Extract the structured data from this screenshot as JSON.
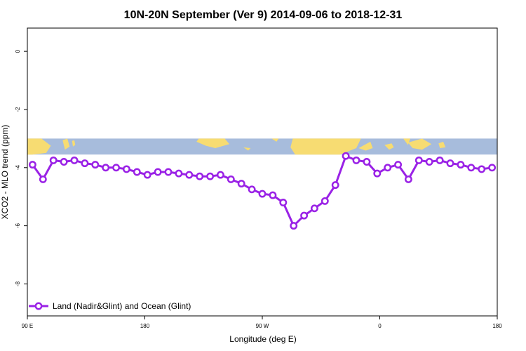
{
  "chart_data": {
    "type": "line",
    "title": "10N-20N September (Ver 9)   2014-09-06 to 2018-12-31",
    "xlabel": "Longitude (deg E)",
    "ylabel": "XCO2 - MLO trend (ppm)",
    "xlim": [
      90,
      450
    ],
    "ylim": [
      -9.1,
      0.8
    ],
    "x_ticks": [
      {
        "value": 90,
        "label": "90 E"
      },
      {
        "value": 180,
        "label": "180"
      },
      {
        "value": 270,
        "label": "90 W"
      },
      {
        "value": 360,
        "label": "0"
      },
      {
        "value": 450,
        "label": "180"
      }
    ],
    "x_ticks_end": {
      "value": 450,
      "label": "180"
    },
    "y_ticks": [
      0,
      -2,
      -4,
      -6,
      -8
    ],
    "y_tick_labels": [
      "0",
      "-2",
      "-4",
      "-6",
      "-8"
    ],
    "grid": false,
    "legend_position": "bottom-left",
    "colors": {
      "series": "#9a22e6",
      "ocean": "#a7bcdc",
      "land": "#f7dc72"
    },
    "map_band": {
      "y_top": -3.0,
      "y_bottom": -3.55
    },
    "series": [
      {
        "name": "Land (Nadir&Glint) and Ocean (Glint)",
        "x": [
          94,
          102,
          110,
          118,
          126,
          134,
          142,
          150,
          158,
          166,
          174,
          182,
          190,
          198,
          206,
          214,
          222,
          230,
          238,
          246,
          254,
          262,
          270,
          278,
          286,
          294,
          302,
          310,
          318,
          326,
          334,
          342,
          350,
          358,
          366,
          374,
          382,
          390,
          398,
          406,
          414,
          422,
          430,
          438,
          446
        ],
        "y": [
          -3.9,
          -4.4,
          -3.75,
          -3.8,
          -3.75,
          -3.85,
          -3.9,
          -4.0,
          -4.0,
          -4.05,
          -4.15,
          -4.25,
          -4.15,
          -4.15,
          -4.2,
          -4.25,
          -4.3,
          -4.3,
          -4.25,
          -4.4,
          -4.55,
          -4.75,
          -4.9,
          -4.95,
          -5.2,
          -6.0,
          -5.65,
          -5.4,
          -5.15,
          -4.6,
          -3.6,
          -3.75,
          -3.8,
          -4.2,
          -4.0,
          -3.9,
          -4.4,
          -3.75,
          -3.8,
          -3.75,
          -3.85,
          -3.9,
          -4.0,
          -4.05,
          -4.0
        ]
      }
    ]
  }
}
